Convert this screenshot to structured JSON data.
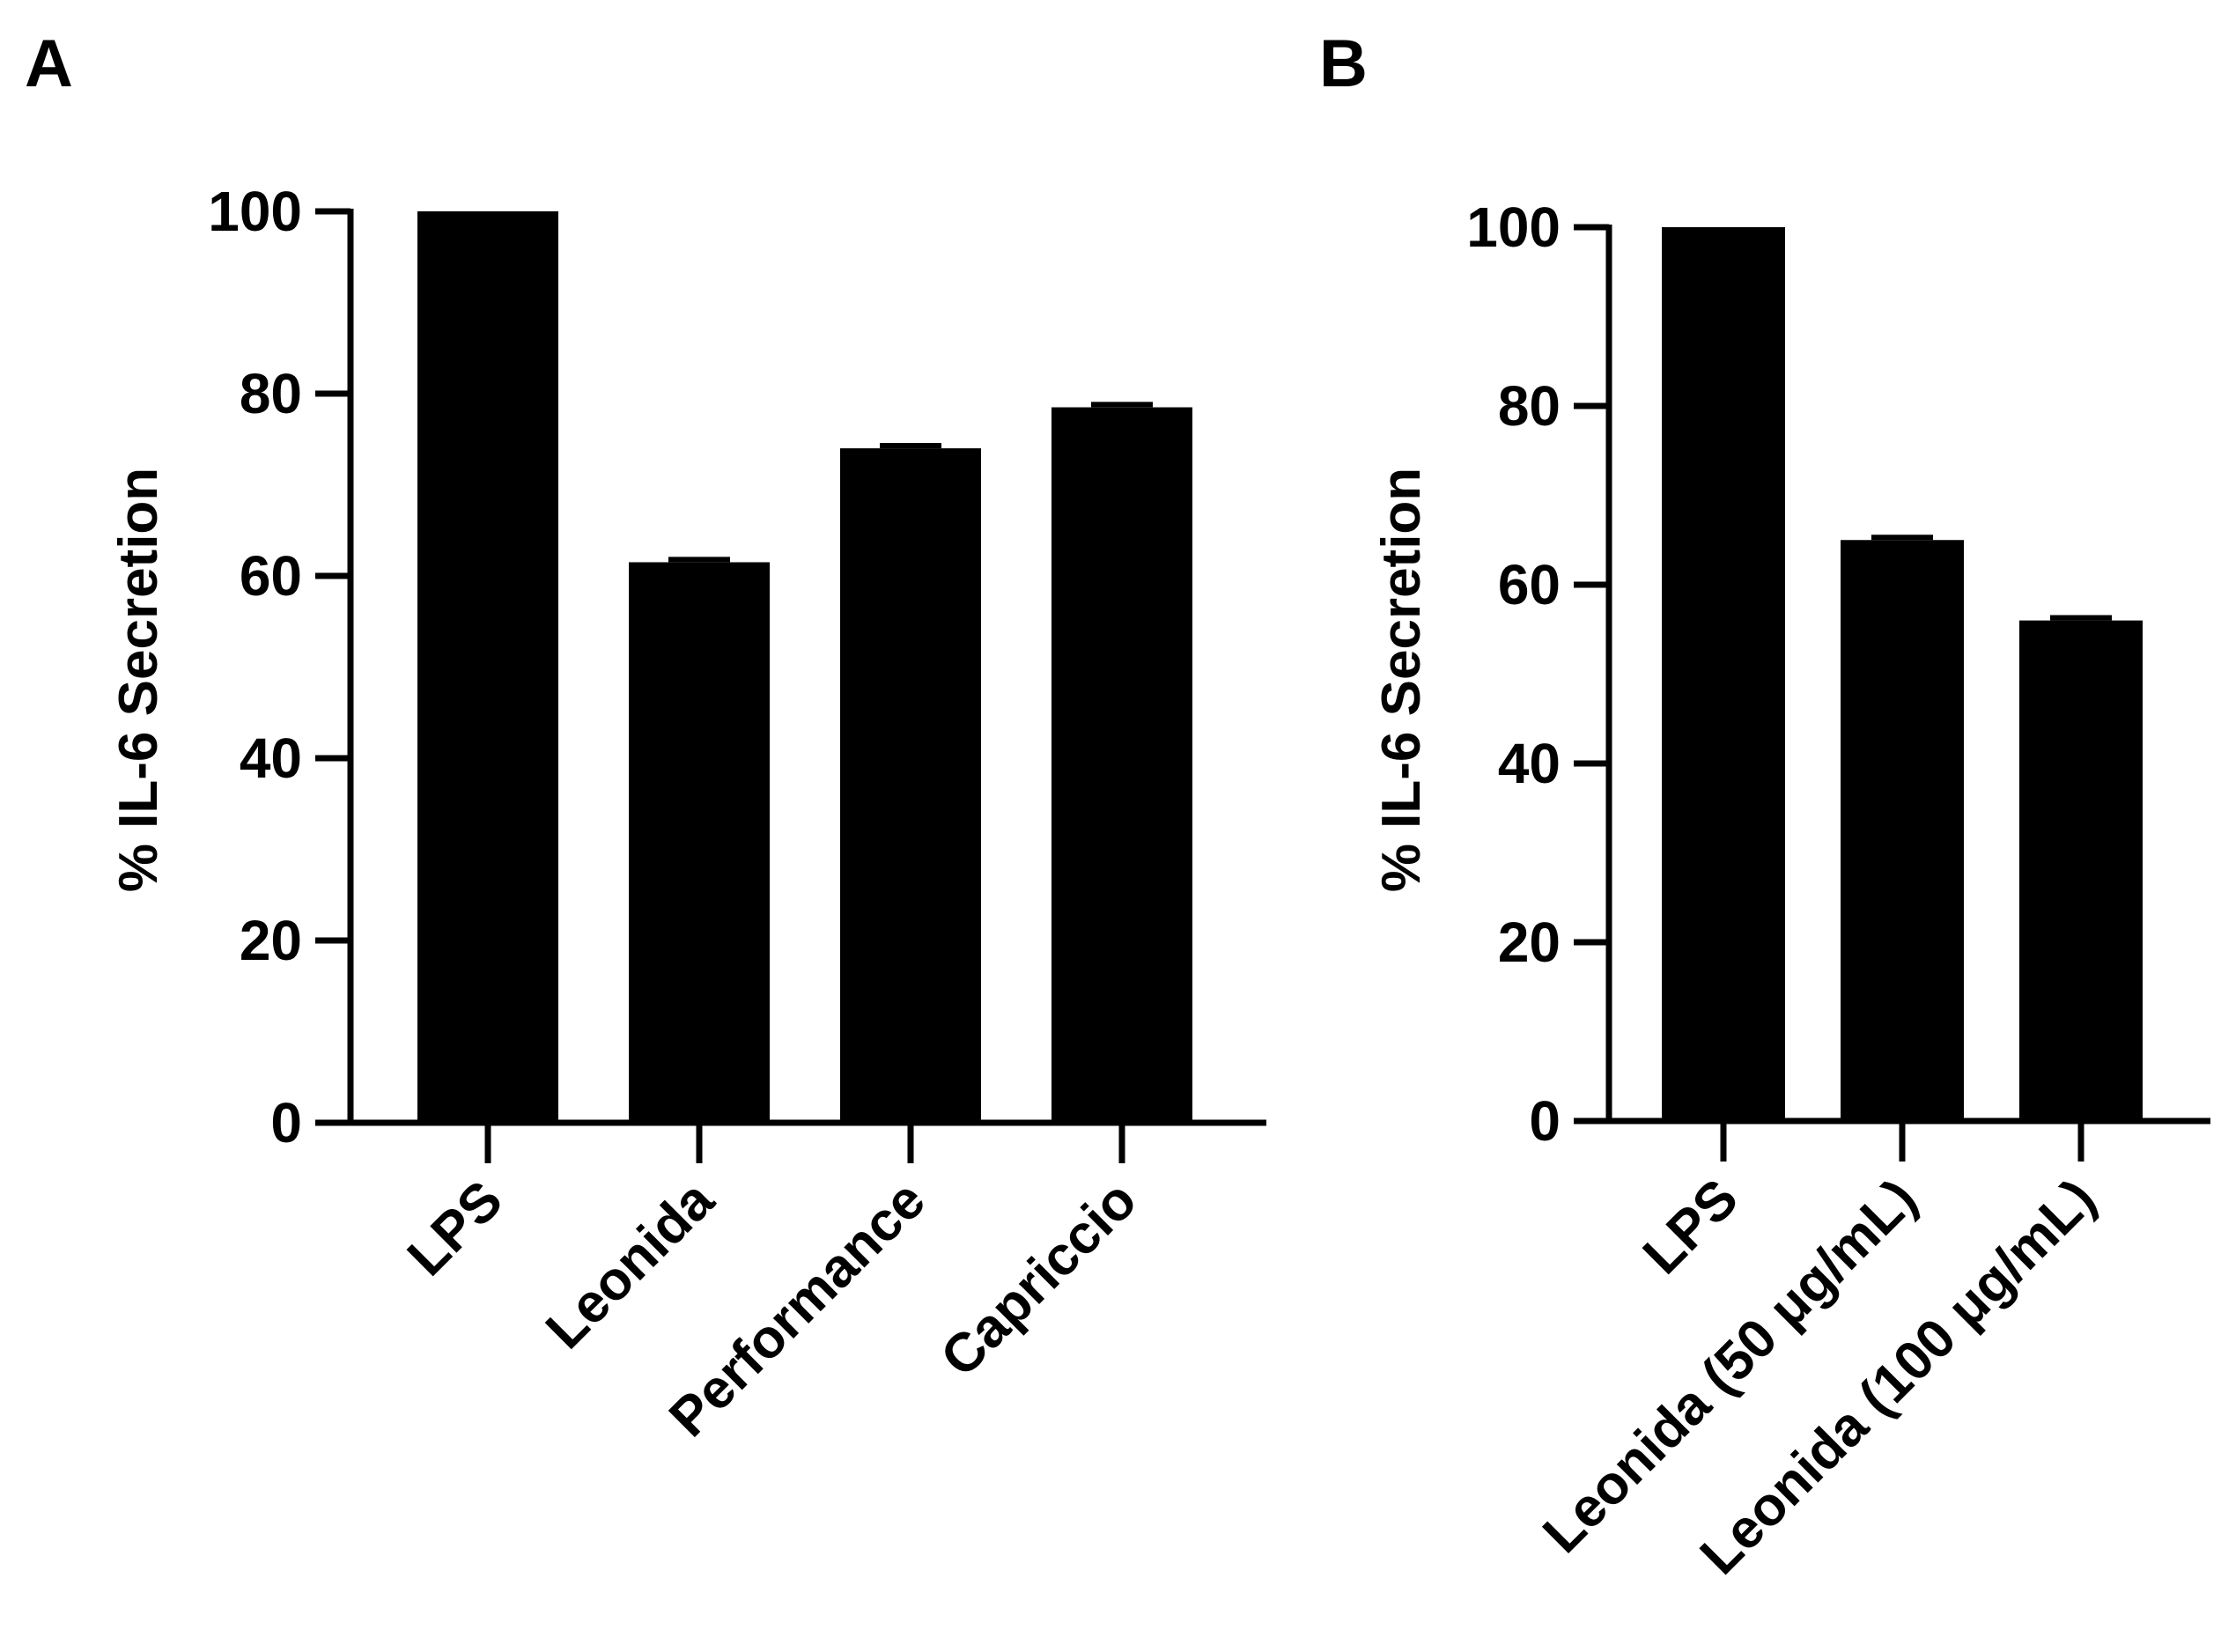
{
  "chart_data": [
    {
      "panel": "A",
      "type": "bar",
      "ylabel": "% IL-6 Secretion",
      "xlabel": "",
      "ylim": [
        0,
        100
      ],
      "yticks": [
        0,
        20,
        40,
        60,
        80,
        100
      ],
      "categories": [
        "LPS",
        "Leonida",
        "Performance",
        "Capriccio"
      ],
      "values": [
        100,
        61.5,
        74,
        78.5
      ],
      "error": [
        0,
        0.3,
        0.3,
        0.3
      ],
      "bar_color": "#000000"
    },
    {
      "panel": "B",
      "type": "bar",
      "ylabel": "% IL-6 Secretion",
      "xlabel": "",
      "ylim": [
        0,
        100
      ],
      "yticks": [
        0,
        20,
        40,
        60,
        80,
        100
      ],
      "categories": [
        "LPS",
        "Leonida (50 μg/mL)",
        "Leonida (100 μg/mL)"
      ],
      "values": [
        100,
        65,
        56
      ],
      "error": [
        0,
        0.3,
        0.3
      ],
      "bar_color": "#000000"
    }
  ]
}
